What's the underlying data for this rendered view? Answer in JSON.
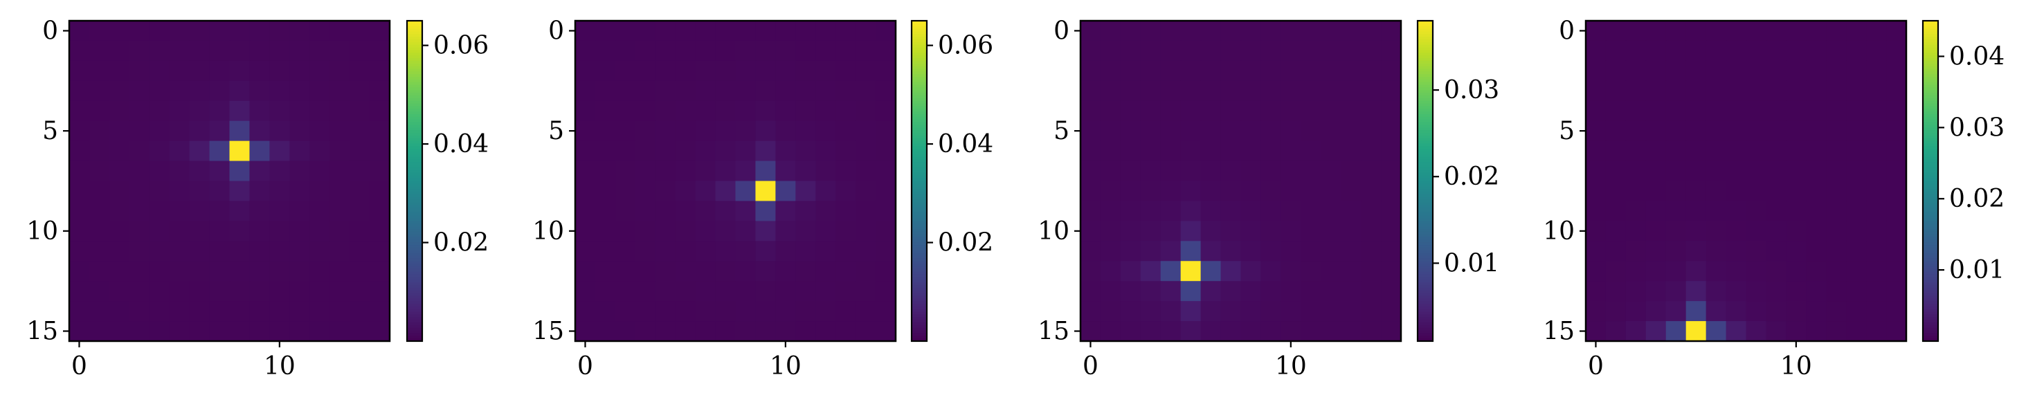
{
  "chart_data": [
    {
      "type": "heatmap",
      "grid_size": 16,
      "peak": {
        "row": 6,
        "col": 8,
        "value": 0.065
      },
      "spread": 1.0,
      "background": 0.0008,
      "colorbar": {
        "min": 0.0,
        "max": 0.065,
        "ticks": [
          0.02,
          0.04,
          0.06
        ],
        "tick_labels": [
          "0.02",
          "0.04",
          "0.06"
        ]
      },
      "xticks": [
        0,
        10
      ],
      "xtick_labels": [
        "0",
        "10"
      ],
      "yticks": [
        0,
        5,
        10,
        15
      ],
      "ytick_labels": [
        "0",
        "5",
        "10",
        "15"
      ]
    },
    {
      "type": "heatmap",
      "grid_size": 16,
      "peak": {
        "row": 8,
        "col": 9,
        "value": 0.065
      },
      "spread": 1.0,
      "background": 0.0008,
      "colorbar": {
        "min": 0.0,
        "max": 0.065,
        "ticks": [
          0.02,
          0.04,
          0.06
        ],
        "tick_labels": [
          "0.02",
          "0.04",
          "0.06"
        ]
      },
      "xticks": [
        0,
        10
      ],
      "xtick_labels": [
        "0",
        "10"
      ],
      "yticks": [
        0,
        5,
        10,
        15
      ],
      "ytick_labels": [
        "0",
        "5",
        "10",
        "15"
      ]
    },
    {
      "type": "heatmap",
      "grid_size": 16,
      "peak": {
        "row": 12,
        "col": 5,
        "value": 0.038
      },
      "spread": 1.1,
      "background": 0.0015,
      "colorbar": {
        "min": 0.001,
        "max": 0.038,
        "ticks": [
          0.01,
          0.02,
          0.03
        ],
        "tick_labels": [
          "0.01",
          "0.02",
          "0.03"
        ]
      },
      "xticks": [
        0,
        10
      ],
      "xtick_labels": [
        "0",
        "10"
      ],
      "yticks": [
        0,
        5,
        10,
        15
      ],
      "ytick_labels": [
        "0",
        "5",
        "10",
        "15"
      ]
    },
    {
      "type": "heatmap",
      "grid_size": 16,
      "peak": {
        "row": 15,
        "col": 5,
        "value": 0.045
      },
      "spread": 1.1,
      "background": 0.0004,
      "colorbar": {
        "min": 0.0,
        "max": 0.045,
        "ticks": [
          0.01,
          0.02,
          0.03,
          0.04
        ],
        "tick_labels": [
          "0.01",
          "0.02",
          "0.03",
          "0.04"
        ]
      },
      "xticks": [
        0,
        10
      ],
      "xtick_labels": [
        "0",
        "10"
      ],
      "yticks": [
        0,
        5,
        10,
        15
      ],
      "ytick_labels": [
        "0",
        "5",
        "10",
        "15"
      ]
    }
  ]
}
